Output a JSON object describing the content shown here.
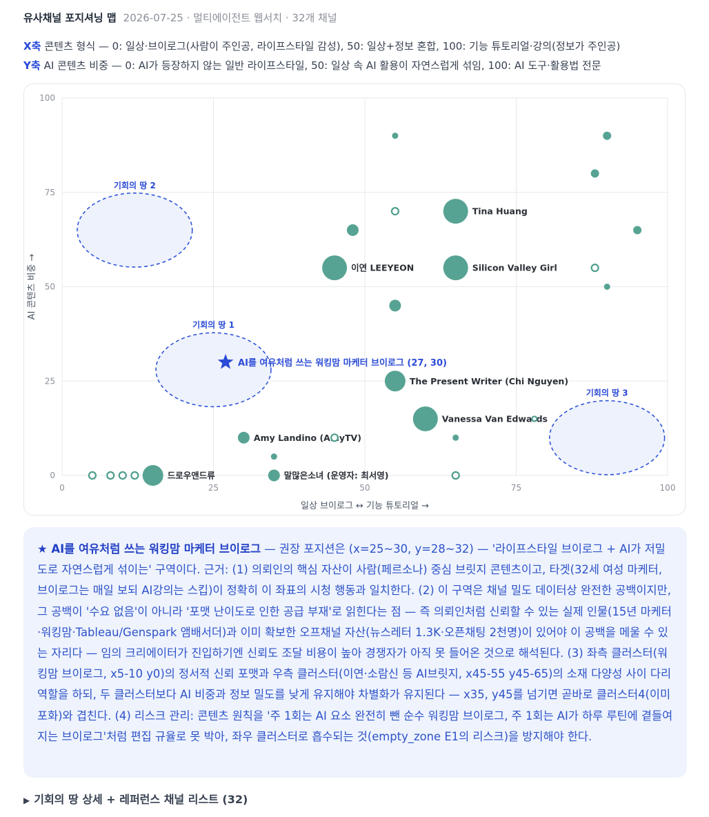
{
  "header": {
    "title": "유사채널 포지셔닝 맵",
    "meta": "2026-07-25 · 멀티에이전트 웹서치 · 32개 채널"
  },
  "axis_desc": {
    "x_tag": "X축",
    "x_text": "콘텐츠 형식 — 0: 일상·브이로그(사람이 주인공, 라이프스타일 감성), 50: 일상+정보 혼합, 100: 기능 튜토리얼·강의(정보가 주인공)",
    "y_tag": "Y축",
    "y_text": "AI 콘텐츠 비중 — 0: AI가 등장하지 않는 일반 라이프스타일, 50: 일상 속 AI 활용이 자연스럽게 섞임, 100: AI 도구·활용법 전문"
  },
  "chart_data": {
    "type": "scatter",
    "title": "",
    "xlabel": "일상 브이로그 ↔ 기능 튜토리얼 →",
    "ylabel": "AI 콘텐츠 비중 →",
    "xlim": [
      0,
      100
    ],
    "ylim": [
      0,
      100
    ],
    "xticks": [
      0,
      25,
      50,
      75,
      100
    ],
    "yticks": [
      0,
      25,
      50,
      75,
      100
    ],
    "grid": true,
    "colors": {
      "point": "#4e9e8d",
      "target": "#2b4bd6",
      "zone_fill": "#eef2fd",
      "zone_stroke": "#3055d8"
    },
    "points": [
      {
        "x": 55,
        "y": 90,
        "size": "xs",
        "hollow": false,
        "label": ""
      },
      {
        "x": 90,
        "y": 90,
        "size": "s",
        "hollow": false,
        "label": ""
      },
      {
        "x": 88,
        "y": 80,
        "size": "s",
        "hollow": false,
        "label": ""
      },
      {
        "x": 55,
        "y": 70,
        "size": "s",
        "hollow": true,
        "label": ""
      },
      {
        "x": 65,
        "y": 70,
        "size": "xl",
        "hollow": false,
        "label": "Tina Huang"
      },
      {
        "x": 48,
        "y": 65,
        "size": "m",
        "hollow": false,
        "label": ""
      },
      {
        "x": 95,
        "y": 65,
        "size": "s",
        "hollow": false,
        "label": ""
      },
      {
        "x": 45,
        "y": 55,
        "size": "xl",
        "hollow": false,
        "label": "이연 LEEYEON"
      },
      {
        "x": 65,
        "y": 55,
        "size": "xl",
        "hollow": false,
        "label": "Silicon Valley Girl"
      },
      {
        "x": 88,
        "y": 55,
        "size": "s",
        "hollow": true,
        "label": ""
      },
      {
        "x": 90,
        "y": 50,
        "size": "xs",
        "hollow": false,
        "label": ""
      },
      {
        "x": 55,
        "y": 45,
        "size": "m",
        "hollow": false,
        "label": ""
      },
      {
        "x": 55,
        "y": 25,
        "size": "l",
        "hollow": false,
        "label": "The Present Writer (Chi Nguyen)"
      },
      {
        "x": 60,
        "y": 15,
        "size": "xl",
        "hollow": false,
        "label": "Vanessa Van Edwards"
      },
      {
        "x": 78,
        "y": 15,
        "size": "xs",
        "hollow": true,
        "label": ""
      },
      {
        "x": 30,
        "y": 10,
        "size": "m",
        "hollow": false,
        "label": "Amy Landino (AmyTV)"
      },
      {
        "x": 45,
        "y": 10,
        "size": "s",
        "hollow": true,
        "label": ""
      },
      {
        "x": 65,
        "y": 10,
        "size": "xs",
        "hollow": false,
        "label": ""
      },
      {
        "x": 35,
        "y": 5,
        "size": "xs",
        "hollow": false,
        "label": ""
      },
      {
        "x": 5,
        "y": 0,
        "size": "s",
        "hollow": true,
        "label": ""
      },
      {
        "x": 8,
        "y": 0,
        "size": "s",
        "hollow": true,
        "label": ""
      },
      {
        "x": 10,
        "y": 0,
        "size": "s",
        "hollow": true,
        "label": ""
      },
      {
        "x": 12,
        "y": 0,
        "size": "s",
        "hollow": true,
        "label": ""
      },
      {
        "x": 15,
        "y": 0,
        "size": "l",
        "hollow": false,
        "label": "드로우앤드류"
      },
      {
        "x": 35,
        "y": 0,
        "size": "m",
        "hollow": false,
        "label": "말많은소녀 (운영자: 최서영)"
      },
      {
        "x": 65,
        "y": 0,
        "size": "s",
        "hollow": true,
        "label": ""
      }
    ],
    "target": {
      "x": 27,
      "y": 30,
      "label": "AI를 여유처럼 쓰는 워킹맘 마케터 브이로그 (27, 30)"
    },
    "zones": [
      {
        "label": "기회의 땅 1",
        "cx": 25,
        "cy": 28,
        "rx": 9.5,
        "ry": 9.8
      },
      {
        "label": "기회의 땅 2",
        "cx": 12,
        "cy": 65,
        "rx": 9.5,
        "ry": 9.8
      },
      {
        "label": "기회의 땅 3",
        "cx": 90,
        "cy": 10,
        "rx": 9.5,
        "ry": 9.8
      }
    ]
  },
  "insight": {
    "lead": "★ AI를 여유처럼 쓰는 워킹맘 마케터 브이로그",
    "body": " — 권장 포지션은 (x=25~30, y=28~32) — '라이프스타일 브이로그 + AI가 저밀도로 자연스럽게 섞이는' 구역이다. 근거: (1) 의뢰인의 핵심 자산이 사람(페르소나) 중심 브릿지 콘텐츠이고, 타겟(32세 여성 마케터, 브이로그는 매일 보되 AI강의는 스킵)이 정확히 이 좌표의 시청 행동과 일치한다. (2) 이 구역은 채널 밀도 데이터상 완전한 공백이지만, 그 공백이 '수요 없음'이 아니라 '포맷 난이도로 인한 공급 부재'로 읽힌다는 점 — 즉 의뢰인처럼 신뢰할 수 있는 실제 인물(15년 마케터·워킹맘·Tableau/Genspark 앰배서더)과 이미 확보한 오프채널 자산(뉴스레터 1.3K·오픈채팅 2천명)이 있어야 이 공백을 메울 수 있는 자리다 — 임의 크리에이터가 진입하기엔 신뢰도 조달 비용이 높아 경쟁자가 아직 못 들어온 것으로 해석된다. (3) 좌측 클러스터(워킹맘 브이로그, x5-10 y0)의 정서적 신뢰 포맷과 우측 클러스터(이연·소람신 등 AI브릿지, x45-55 y45-65)의 소재 다양성 사이 다리 역할을 하되, 두 클러스터보다 AI 비중과 정보 밀도를 낮게 유지해야 차별화가 유지된다 — x35, y45를 넘기면 곧바로 클러스터4(이미 포화)와 겹친다. (4) 리스크 관리: 콘텐츠 원칙을 '주 1회는 AI 요소 완전히 뺀 순수 워킹맘 브이로그, 주 1회는 AI가 하루 루틴에 곁들여지는 브이로그'처럼 편집 규율로 못 박아, 좌우 클러스터로 흡수되는 것(empty_zone E1의 리스크)을 방지해야 한다."
  },
  "details": {
    "label": "기회의 땅 상세 + 레퍼런스 채널 리스트 (32)"
  }
}
